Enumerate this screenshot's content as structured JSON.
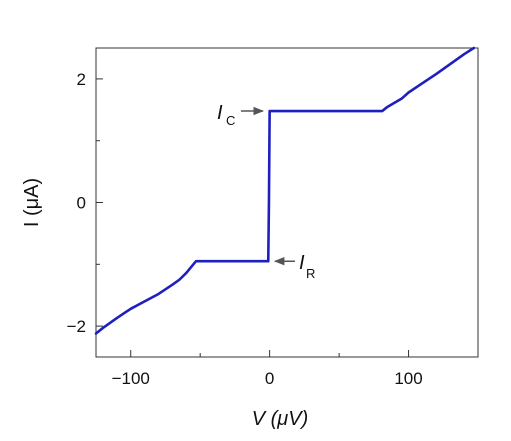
{
  "chart_data": {
    "type": "line",
    "xlabel": "V (μV)",
    "ylabel": "I (μA)",
    "xlim": [
      -125,
      150
    ],
    "ylim": [
      -2.5,
      2.5
    ],
    "xticks": [
      -100,
      0,
      100
    ],
    "xtick_labels": [
      "−100",
      "0",
      "100"
    ],
    "yticks": [
      -2,
      0,
      2
    ],
    "ytick_labels": [
      "−2",
      "0",
      "2"
    ],
    "grid": false,
    "series": [
      {
        "color": "#1f1fbf",
        "x": [
          -125,
          -120,
          -110,
          -100,
          -90,
          -80,
          -70,
          -65,
          -60,
          -56,
          -53,
          -40,
          -20,
          -1,
          -0.5,
          0,
          0.5,
          20,
          50,
          81,
          85,
          95,
          100,
          110,
          120,
          130,
          140,
          147
        ],
        "y": [
          -2.12,
          -2.03,
          -1.87,
          -1.72,
          -1.6,
          -1.48,
          -1.33,
          -1.25,
          -1.14,
          -1.03,
          -0.95,
          -0.95,
          -0.95,
          -0.95,
          0.0,
          1.48,
          1.48,
          1.48,
          1.48,
          1.48,
          1.55,
          1.68,
          1.78,
          1.93,
          2.08,
          2.24,
          2.4,
          2.5
        ]
      }
    ],
    "annotations": [
      {
        "label": "I",
        "subscript": "C",
        "x": -0.5,
        "y": 1.48
      },
      {
        "label": "I",
        "subscript": "R",
        "x": -0.5,
        "y": -0.95
      }
    ]
  }
}
